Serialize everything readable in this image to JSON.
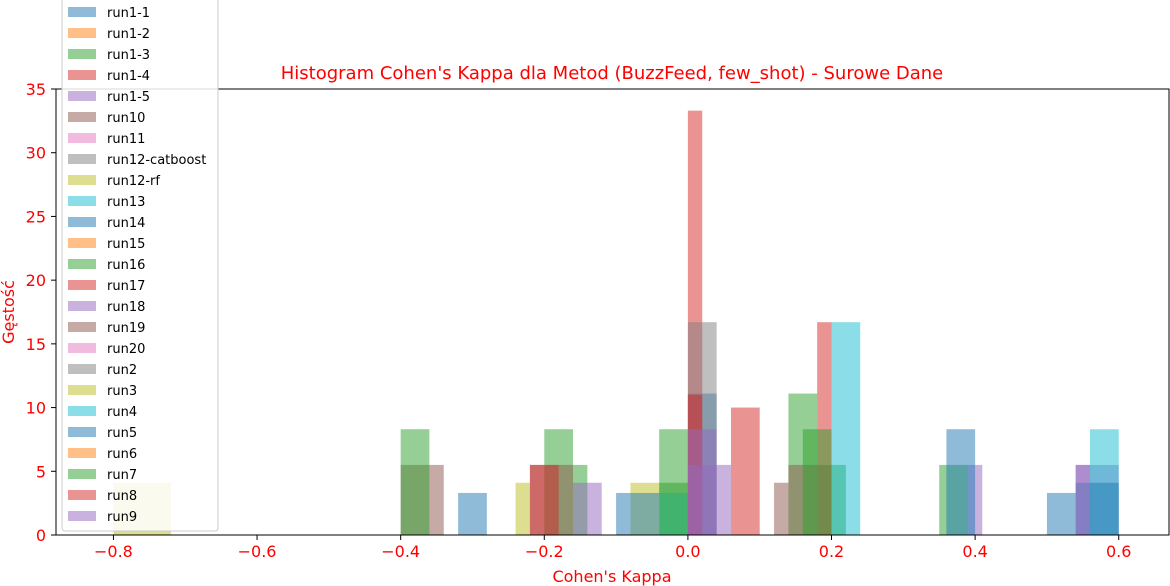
{
  "chart_data": {
    "type": "bar",
    "title": "Histogram Cohen's Kappa dla Metod (BuzzFeed, few_shot) - Surowe Dane",
    "xlabel": "Cohen's Kappa",
    "ylabel": "Gęstość",
    "xlim": [
      -0.88,
      0.67
    ],
    "ylim": [
      0,
      35
    ],
    "xticks": [
      -0.8,
      -0.6,
      -0.4,
      -0.2,
      0.0,
      0.2,
      0.4,
      0.6
    ],
    "xtick_labels": [
      "−0.8",
      "−0.6",
      "−0.4",
      "−0.2",
      "0.0",
      "0.2",
      "0.4",
      "0.6"
    ],
    "yticks": [
      0,
      5,
      10,
      15,
      20,
      25,
      30,
      35
    ],
    "ytick_labels": [
      "0",
      "5",
      "10",
      "15",
      "20",
      "25",
      "30",
      "35"
    ],
    "grid": false,
    "legend_position": "top-left",
    "series": [
      {
        "name": "run1-1",
        "color": "#1f77b4",
        "bins": [
          [
            0.0,
            0.04,
            11.1
          ]
        ]
      },
      {
        "name": "run1-2",
        "color": "#ff7f0e",
        "bins": []
      },
      {
        "name": "run1-3",
        "color": "#2ca02c",
        "bins": [
          [
            -0.04,
            0.0,
            8.3
          ],
          [
            0.14,
            0.18,
            11.1
          ],
          [
            0.35,
            0.39,
            5.5
          ]
        ]
      },
      {
        "name": "run1-4",
        "color": "#d62728",
        "bins": [
          [
            0.0,
            0.02,
            33.3
          ],
          [
            0.18,
            0.2,
            16.7
          ]
        ]
      },
      {
        "name": "run1-5",
        "color": "#9467bd",
        "bins": [
          [
            0.39,
            0.41,
            5.5
          ]
        ]
      },
      {
        "name": "run10",
        "color": "#8c564b",
        "bins": [
          [
            0.12,
            0.14,
            4.1
          ]
        ]
      },
      {
        "name": "run11",
        "color": "#e377c2",
        "bins": []
      },
      {
        "name": "run12-catboost",
        "color": "#7f7f7f",
        "bins": [
          [
            0.0,
            0.04,
            16.7
          ]
        ]
      },
      {
        "name": "run12-rf",
        "color": "#bcbd22",
        "bins": [
          [
            -0.8,
            -0.72,
            4.1
          ],
          [
            -0.24,
            -0.22,
            4.1
          ],
          [
            -0.08,
            -0.04,
            4.1
          ]
        ]
      },
      {
        "name": "run13",
        "color": "#17becf",
        "bins": []
      },
      {
        "name": "run14",
        "color": "#1f77b4",
        "bins": [
          [
            -0.1,
            -0.04,
            3.3
          ],
          [
            -0.32,
            -0.28,
            3.3
          ],
          [
            0.5,
            0.54,
            3.3
          ]
        ]
      },
      {
        "name": "run15",
        "color": "#ff7f0e",
        "bins": []
      },
      {
        "name": "run16",
        "color": "#2ca02c",
        "bins": [
          [
            -0.2,
            -0.16,
            8.3
          ],
          [
            -0.16,
            -0.14,
            5.5
          ],
          [
            0.2,
            0.22,
            5.5
          ]
        ]
      },
      {
        "name": "run17",
        "color": "#d62728",
        "bins": [
          [
            0.06,
            0.1,
            10.0
          ],
          [
            0.0,
            0.02,
            11.0
          ]
        ]
      },
      {
        "name": "run18",
        "color": "#9467bd",
        "bins": [
          [
            0.0,
            0.06,
            5.5
          ],
          [
            0.54,
            0.6,
            5.5
          ]
        ]
      },
      {
        "name": "run19",
        "color": "#8c564b",
        "bins": [
          [
            -0.4,
            -0.34,
            5.5
          ],
          [
            -0.22,
            -0.16,
            5.5
          ],
          [
            0.14,
            0.2,
            5.5
          ]
        ]
      },
      {
        "name": "run20",
        "color": "#e377c2",
        "bins": []
      },
      {
        "name": "run2",
        "color": "#7f7f7f",
        "bins": []
      },
      {
        "name": "run3",
        "color": "#bcbd22",
        "bins": []
      },
      {
        "name": "run4",
        "color": "#17becf",
        "bins": [
          [
            0.2,
            0.24,
            16.7
          ],
          [
            0.56,
            0.6,
            8.3
          ],
          [
            -0.04,
            0.0,
            3.3
          ]
        ]
      },
      {
        "name": "run5",
        "color": "#1f77b4",
        "bins": [
          [
            0.36,
            0.4,
            8.3
          ],
          [
            0.54,
            0.6,
            4.1
          ]
        ]
      },
      {
        "name": "run6",
        "color": "#ff7f0e",
        "bins": []
      },
      {
        "name": "run7",
        "color": "#2ca02c",
        "bins": [
          [
            -0.4,
            -0.36,
            8.3
          ],
          [
            -0.04,
            0.0,
            4.1
          ],
          [
            0.16,
            0.2,
            8.3
          ]
        ]
      },
      {
        "name": "run8",
        "color": "#d62728",
        "bins": [
          [
            -0.22,
            -0.18,
            5.5
          ]
        ]
      },
      {
        "name": "run9",
        "color": "#9467bd",
        "bins": [
          [
            0.0,
            0.04,
            8.3
          ],
          [
            0.54,
            0.56,
            5.5
          ],
          [
            -0.16,
            -0.12,
            4.1
          ]
        ]
      }
    ]
  }
}
